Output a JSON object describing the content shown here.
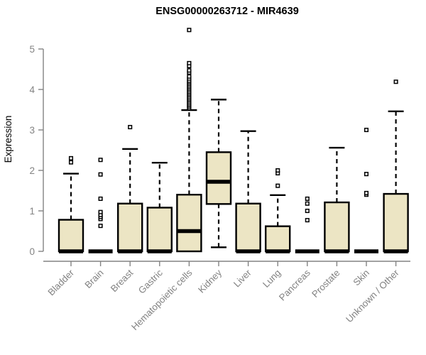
{
  "page": {
    "title": "ENSG00000263712 - MIR4639"
  },
  "chart_data": {
    "type": "boxplot",
    "title": "ENSG00000263712 - MIR4639",
    "ylabel": "Expression",
    "xlabel": "",
    "ylim": [
      0,
      5
    ],
    "yticks": [
      0,
      1,
      2,
      3,
      4,
      5
    ],
    "grid": false,
    "legend": "none",
    "categories": [
      "Bladder",
      "Brain",
      "Breast",
      "Gastric",
      "Hematopoietic cells",
      "Kidney",
      "Liver",
      "Lung",
      "Pancreas",
      "Prostate",
      "Skin",
      "Unknown / Other"
    ],
    "series": [
      {
        "category": "Bladder",
        "whisker_low": 0,
        "q1": 0,
        "median": 0,
        "q3": 0.78,
        "whisker_high": 1.92,
        "outliers": [
          2.2,
          2.3
        ]
      },
      {
        "category": "Brain",
        "whisker_low": 0,
        "q1": 0,
        "median": 0,
        "q3": 0,
        "whisker_high": 0,
        "outliers": [
          0.63,
          0.8,
          0.85,
          0.9,
          0.97,
          1.3,
          1.9,
          2.26
        ]
      },
      {
        "category": "Breast",
        "whisker_low": 0,
        "q1": 0,
        "median": 0,
        "q3": 1.18,
        "whisker_high": 2.53,
        "outliers": [
          3.07
        ]
      },
      {
        "category": "Gastric",
        "whisker_low": 0,
        "q1": 0,
        "median": 0,
        "q3": 1.08,
        "whisker_high": 2.19,
        "outliers": []
      },
      {
        "category": "Hematopoietic cells",
        "whisker_low": 0,
        "q1": 0,
        "median": 0.5,
        "q3": 1.4,
        "whisker_high": 3.49,
        "outliers": [
          3.54,
          3.58,
          3.62,
          3.66,
          3.7,
          3.74,
          3.78,
          3.82,
          3.86,
          3.9,
          3.94,
          3.98,
          4.02,
          4.06,
          4.1,
          4.14,
          4.18,
          4.22,
          4.27,
          4.32,
          4.42,
          4.47,
          4.58,
          4.65,
          5.47
        ]
      },
      {
        "category": "Kidney",
        "whisker_low": 0.1,
        "q1": 1.17,
        "median": 1.72,
        "q3": 2.45,
        "whisker_high": 3.75,
        "outliers": []
      },
      {
        "category": "Liver",
        "whisker_low": 0,
        "q1": 0,
        "median": 0,
        "q3": 1.18,
        "whisker_high": 2.97,
        "outliers": []
      },
      {
        "category": "Lung",
        "whisker_low": 0,
        "q1": 0,
        "median": 0,
        "q3": 0.62,
        "whisker_high": 1.39,
        "outliers": [
          1.62,
          1.93,
          2.0
        ]
      },
      {
        "category": "Pancreas",
        "whisker_low": 0,
        "q1": 0,
        "median": 0,
        "q3": 0,
        "whisker_high": 0,
        "outliers": [
          0.77,
          1.0,
          1.18,
          1.3
        ]
      },
      {
        "category": "Prostate",
        "whisker_low": 0,
        "q1": 0,
        "median": 0,
        "q3": 1.21,
        "whisker_high": 2.56,
        "outliers": []
      },
      {
        "category": "Skin",
        "whisker_low": 0,
        "q1": 0,
        "median": 0,
        "q3": 0,
        "whisker_high": 0,
        "outliers": [
          1.4,
          1.44,
          1.91,
          3.0
        ]
      },
      {
        "category": "Unknown / Other",
        "whisker_low": 0,
        "q1": 0,
        "median": 0,
        "q3": 1.42,
        "whisker_high": 3.46,
        "outliers": [
          4.19
        ]
      }
    ],
    "colors": {
      "box_fill": "#ece5c4",
      "box_border": "#000000",
      "median": "#000000",
      "whisker": "#000000",
      "outlier_stroke": "#000000",
      "outlier_fill": "#ffffff",
      "axis": "#838383",
      "tick_label": "#838383",
      "title": "#000000"
    }
  }
}
